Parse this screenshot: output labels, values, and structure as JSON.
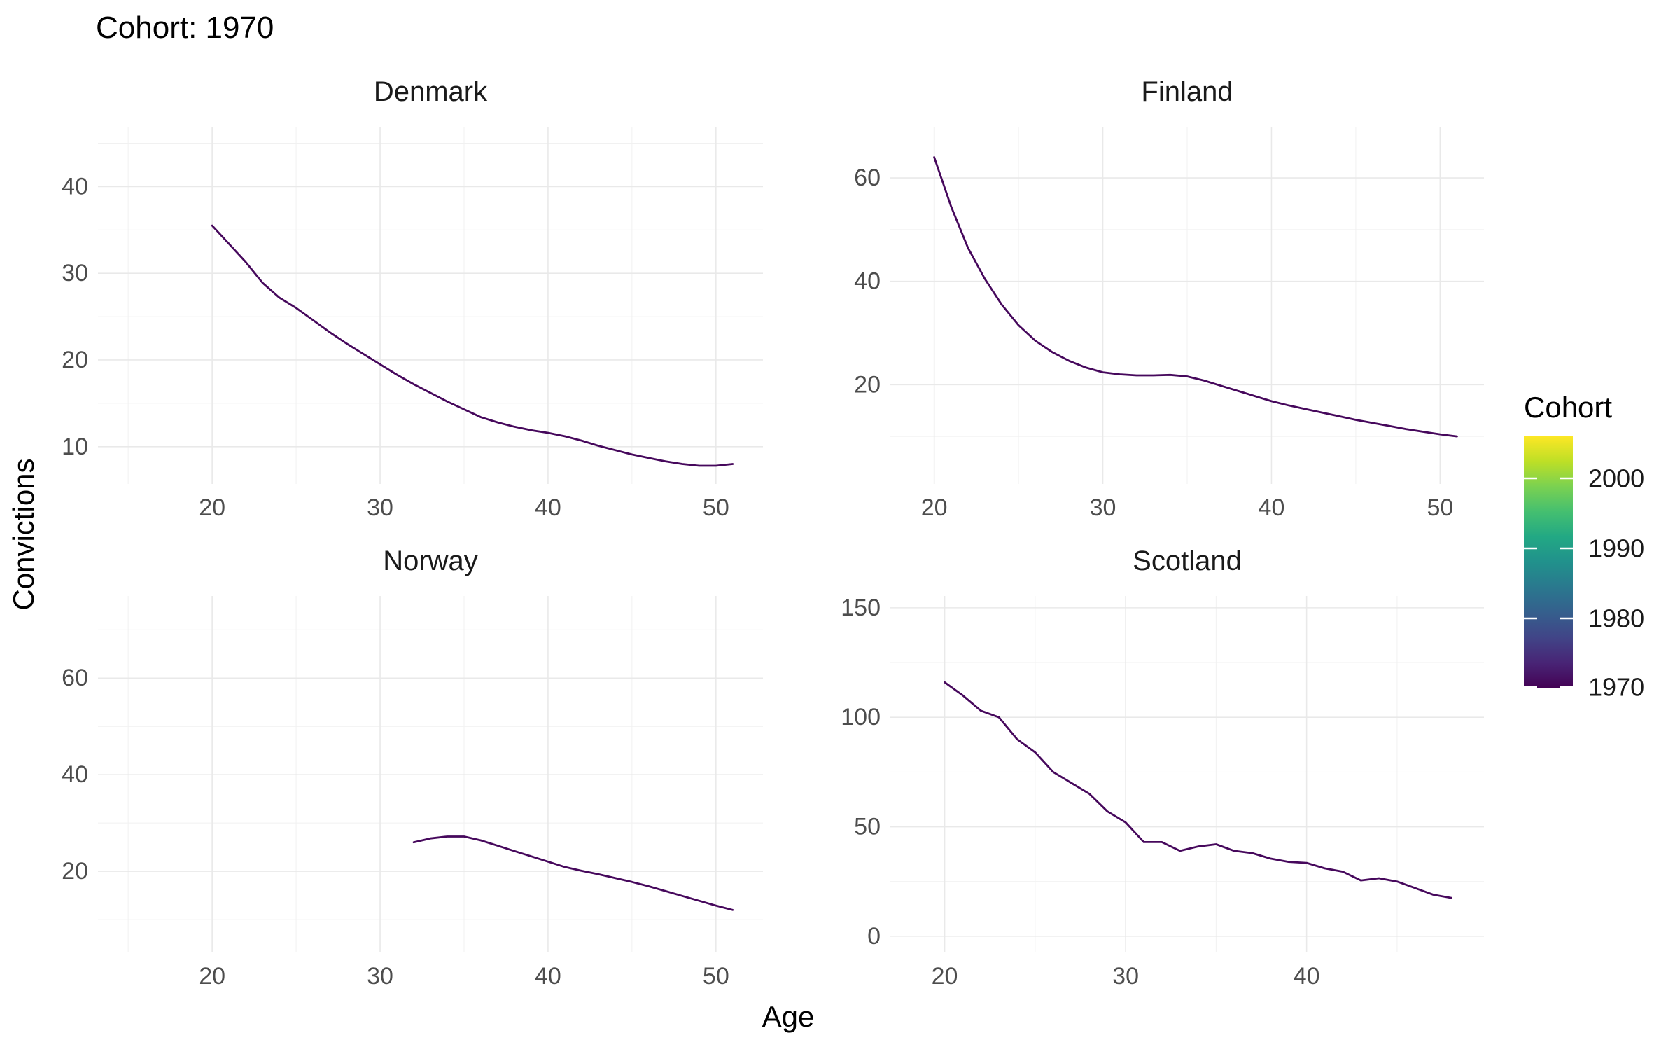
{
  "title": "Cohort: 1970",
  "x_axis_label": "Age",
  "y_axis_label": "Convictions",
  "colors": {
    "line": "#46085c",
    "grid_major": "#e9e9e9",
    "grid_minor": "#f1f1f1",
    "tick_text": "#4d4d4d",
    "facet_text": "#1a1a1a",
    "background": "#ffffff"
  },
  "legend": {
    "title": "Cohort",
    "tick_labels": [
      "2000",
      "1990",
      "1980",
      "1970"
    ],
    "tick_values": [
      2000,
      1990,
      1980,
      1970
    ],
    "domain": [
      1970,
      2006
    ],
    "gradient": [
      [
        "0%",
        "#440154"
      ],
      [
        "10%",
        "#482475"
      ],
      [
        "20%",
        "#414487"
      ],
      [
        "30%",
        "#355f8d"
      ],
      [
        "40%",
        "#2a788e"
      ],
      [
        "50%",
        "#21918c"
      ],
      [
        "60%",
        "#22a884"
      ],
      [
        "70%",
        "#44bf70"
      ],
      [
        "80%",
        "#7ad151"
      ],
      [
        "90%",
        "#bddf26"
      ],
      [
        "100%",
        "#fde725"
      ]
    ]
  },
  "chart_data": [
    {
      "type": "line",
      "title": "Denmark",
      "xlabel": "Age",
      "ylabel": "Convictions",
      "xlim": [
        13.2,
        52.8
      ],
      "ylim": [
        5.7,
        46.9
      ],
      "x_ticks": [
        20,
        30,
        40,
        50
      ],
      "x_minor_ticks": [
        15,
        25,
        35,
        45
      ],
      "y_ticks": [
        10,
        20,
        30,
        40
      ],
      "y_minor_ticks": [
        15,
        25,
        35,
        45
      ],
      "grid": true,
      "series": [
        {
          "name": "1970",
          "x": [
            20,
            21,
            22,
            23,
            24,
            25,
            26,
            27,
            28,
            29,
            30,
            31,
            32,
            33,
            34,
            35,
            36,
            37,
            38,
            39,
            40,
            41,
            42,
            43,
            44,
            45,
            46,
            47,
            48,
            49,
            50,
            51
          ],
          "y": [
            35.5,
            33.4,
            31.3,
            28.9,
            27.2,
            26.0,
            24.6,
            23.2,
            21.9,
            20.7,
            19.5,
            18.3,
            17.2,
            16.2,
            15.2,
            14.3,
            13.4,
            12.8,
            12.3,
            11.9,
            11.6,
            11.2,
            10.7,
            10.1,
            9.6,
            9.1,
            8.7,
            8.3,
            8.0,
            7.8,
            7.8,
            8.0
          ]
        }
      ]
    },
    {
      "type": "line",
      "title": "Finland",
      "xlabel": "Age",
      "ylabel": "Convictions",
      "xlim": [
        17.4,
        52.6
      ],
      "ylim": [
        0.8,
        69.9
      ],
      "x_ticks": [
        20,
        30,
        40,
        50
      ],
      "x_minor_ticks": [
        25,
        35,
        45
      ],
      "y_ticks": [
        20,
        40,
        60
      ],
      "y_minor_ticks": [
        10,
        30,
        50
      ],
      "grid": true,
      "series": [
        {
          "name": "1970",
          "x": [
            20,
            21,
            22,
            23,
            24,
            25,
            26,
            27,
            28,
            29,
            30,
            31,
            32,
            33,
            34,
            35,
            36,
            37,
            38,
            39,
            40,
            41,
            42,
            43,
            44,
            45,
            46,
            47,
            48,
            49,
            50,
            51
          ],
          "y": [
            64.0,
            54.5,
            46.5,
            40.5,
            35.5,
            31.5,
            28.5,
            26.3,
            24.6,
            23.3,
            22.4,
            22.0,
            21.8,
            21.8,
            21.9,
            21.6,
            20.8,
            19.8,
            18.8,
            17.8,
            16.8,
            16.0,
            15.3,
            14.6,
            13.9,
            13.2,
            12.6,
            12.0,
            11.4,
            10.9,
            10.4,
            10.0
          ]
        }
      ]
    },
    {
      "type": "line",
      "title": "Norway",
      "xlabel": "Age",
      "ylabel": "Convictions",
      "xlim": [
        13.2,
        52.8
      ],
      "ylim": [
        3.2,
        77.0
      ],
      "x_ticks": [
        20,
        30,
        40,
        50
      ],
      "x_minor_ticks": [
        15,
        25,
        35,
        45
      ],
      "y_ticks": [
        20,
        40,
        60
      ],
      "y_minor_ticks": [
        10,
        30,
        50,
        70
      ],
      "grid": true,
      "series": [
        {
          "name": "1970",
          "x": [
            32,
            33,
            34,
            35,
            36,
            37,
            38,
            39,
            40,
            41,
            42,
            43,
            44,
            45,
            46,
            47,
            48,
            49,
            50,
            51
          ],
          "y": [
            26.0,
            26.8,
            27.2,
            27.2,
            26.4,
            25.3,
            24.2,
            23.1,
            22.0,
            20.9,
            20.1,
            19.4,
            18.6,
            17.8,
            16.9,
            15.9,
            14.9,
            13.9,
            12.9,
            12.0
          ]
        }
      ]
    },
    {
      "type": "line",
      "title": "Scotland",
      "xlabel": "Age",
      "ylabel": "Convictions",
      "xlim": [
        17.0,
        49.8
      ],
      "ylim": [
        -7.4,
        155.4
      ],
      "x_ticks": [
        20,
        30,
        40
      ],
      "x_minor_ticks": [
        25,
        35,
        45
      ],
      "y_ticks": [
        0,
        50,
        100,
        150
      ],
      "y_minor_ticks": [
        25,
        75,
        125
      ],
      "grid": true,
      "series": [
        {
          "name": "1970",
          "x": [
            20,
            21,
            22,
            23,
            24,
            25,
            26,
            27,
            28,
            29,
            30,
            31,
            32,
            33,
            34,
            35,
            36,
            37,
            38,
            39,
            40,
            41,
            42,
            43,
            44,
            45,
            46,
            47,
            48
          ],
          "y": [
            116,
            110,
            103,
            100,
            90,
            84,
            75,
            70,
            65,
            57,
            52,
            43,
            43,
            39,
            41,
            42,
            39,
            38,
            35.5,
            34,
            33.5,
            31,
            29.5,
            25.5,
            26.5,
            25,
            22,
            19,
            17.5
          ]
        }
      ]
    }
  ]
}
